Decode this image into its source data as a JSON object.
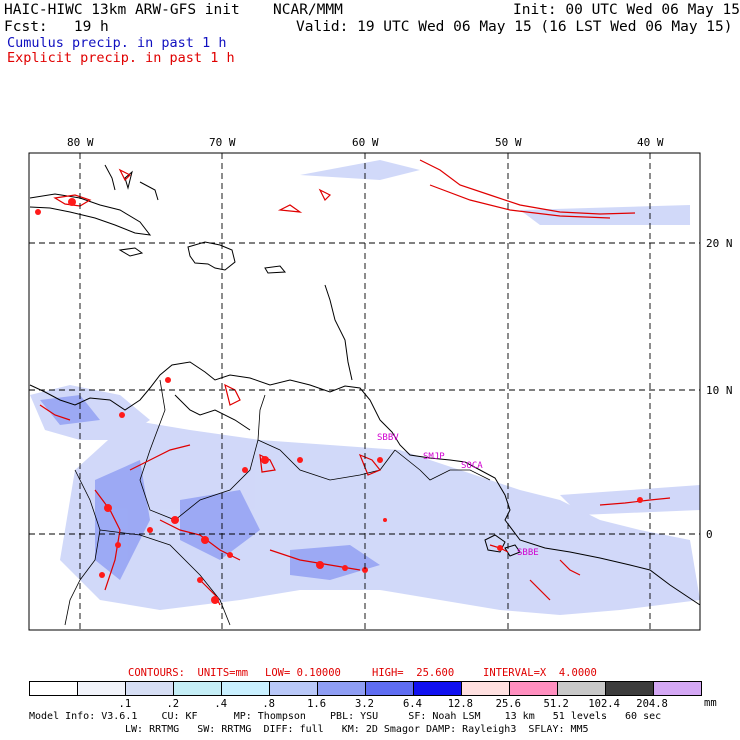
{
  "header": {
    "model_title": "HAIC-HIWC 13km ARW-GFS init",
    "org": "NCAR/MMM",
    "init": "Init: 00 UTC Wed 06 May 15",
    "fcst": "Fcst:   19 h",
    "valid": "Valid: 19 UTC Wed 06 May 15 (16 LST Wed 06 May 15)",
    "cumulus_label": "Cumulus precip. in past 1 h",
    "explicit_label": "Explicit precip. in past 1 h"
  },
  "colors": {
    "cumulus": "#1010c0",
    "explicit": "#e00000",
    "contour_text": "#e00000",
    "station": "#d000d0"
  },
  "map": {
    "lon_labels": [
      "80 W",
      "70 W",
      "60 W",
      "50 W",
      "40 W"
    ],
    "lat_labels": [
      "20 N",
      "10 N",
      "0"
    ],
    "stations": [
      "SBBV",
      "SMJP",
      "SOCA",
      "SBBE"
    ]
  },
  "contours": {
    "units": "CONTOURS:  UNITS=mm",
    "low": "LOW= 0.10000",
    "high": "HIGH=  25.600",
    "interval": "INTERVAL=X  4.0000"
  },
  "colorbar": {
    "colors": [
      "#ffffff",
      "#f1f3fa",
      "#d6def4",
      "#c5eef6",
      "#c9f0ff",
      "#b9c8f8",
      "#8f9ef4",
      "#5f6df2",
      "#1010f0",
      "#ffe0e0",
      "#ff8fbf",
      "#c8c8c8",
      "#3c3c3c",
      "#d4a8f4"
    ],
    "ticks": [
      ".1",
      ".2",
      ".4",
      ".8",
      "1.6",
      "3.2",
      "6.4",
      "12.8",
      "25.6",
      "51.2",
      "102.4",
      "204.8"
    ],
    "units": "mm"
  },
  "footer": {
    "line1": "Model Info: V3.6.1    CU: KF      MP: Thompson    PBL: YSU     SF: Noah LSM    13 km   51 levels   60 sec",
    "line2": "LW: RRTMG   SW: RRTMG  DIFF: full   KM: 2D Smagor DAMP: Rayleigh3  SFLAY: MM5"
  }
}
